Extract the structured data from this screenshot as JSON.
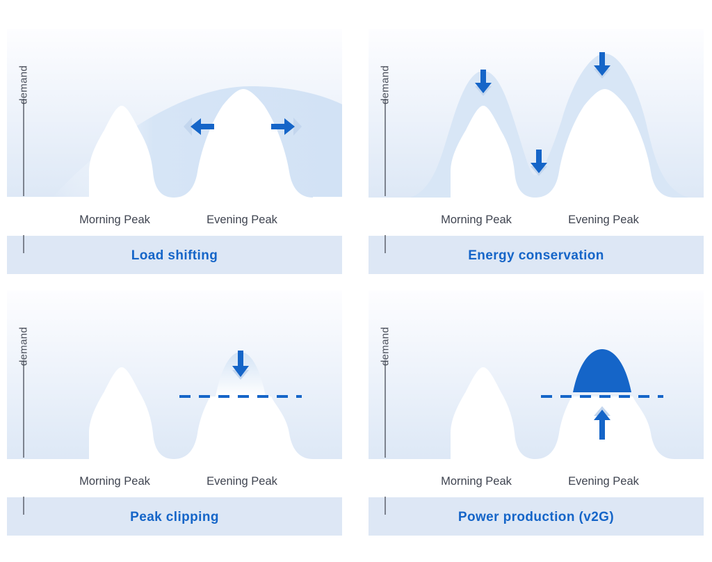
{
  "colors": {
    "accent": "#1565c8",
    "band": "#dbe8f7",
    "caption_bg": "#dde7f5",
    "panel_gradient_top": "#fbfcfe",
    "panel_gradient_bottom": "#e1ebf8"
  },
  "axis_label": "demand",
  "peaks": {
    "morning": "Morning Peak",
    "evening": "Evening Peak"
  },
  "panels": [
    {
      "caption": "Load shifting",
      "icons": [
        "arrow-left-icon",
        "arrow-right-icon"
      ]
    },
    {
      "caption": "Energy conservation",
      "icons": [
        "arrow-down-icon",
        "arrow-down-icon",
        "arrow-down-icon"
      ]
    },
    {
      "caption": "Peak clipping",
      "icons": [
        "arrow-down-icon",
        "dashed-threshold-line"
      ]
    },
    {
      "caption": "Power production (v2G)",
      "icons": [
        "arrow-up-icon",
        "dashed-threshold-line"
      ]
    }
  ]
}
